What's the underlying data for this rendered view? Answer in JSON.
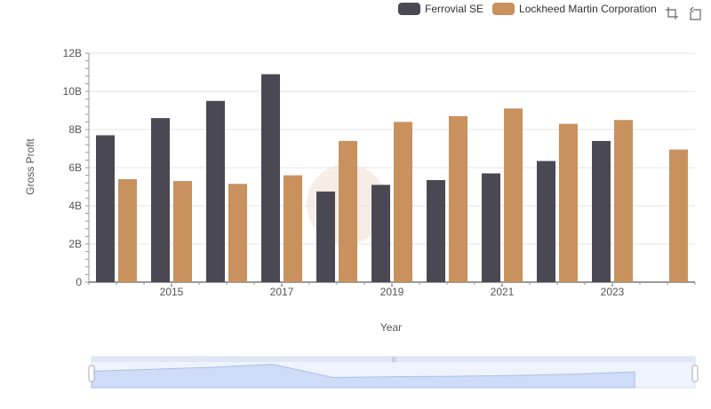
{
  "chart_data": {
    "type": "bar",
    "xlabel": "Year",
    "ylabel": "Gross Profit",
    "ylim": [
      0,
      12000000000
    ],
    "yticks": [
      "0",
      "2B",
      "4B",
      "6B",
      "8B",
      "10B",
      "12B"
    ],
    "xticks": [
      "2015",
      "2017",
      "2019",
      "2021",
      "2023"
    ],
    "categories": [
      "2014",
      "2015",
      "2016",
      "2017",
      "2018",
      "2019",
      "2020",
      "2021",
      "2022",
      "2023",
      "2024"
    ],
    "series": [
      {
        "name": "Ferrovial SE",
        "color": "#4a4953",
        "values": [
          7700000000,
          8600000000,
          9500000000,
          10900000000,
          4750000000,
          5100000000,
          5350000000,
          5700000000,
          6350000000,
          7400000000,
          null
        ]
      },
      {
        "name": "Lockheed Martin Corporation",
        "color": "#c8915e",
        "values": [
          5400000000,
          5300000000,
          5150000000,
          5600000000,
          7400000000,
          8400000000,
          8700000000,
          9100000000,
          8300000000,
          8500000000,
          6950000000
        ]
      }
    ],
    "grid": true,
    "legend_position": "top-right"
  },
  "toolbar": {
    "icons": [
      "zoom-select-icon",
      "zoom-reset-icon"
    ]
  }
}
